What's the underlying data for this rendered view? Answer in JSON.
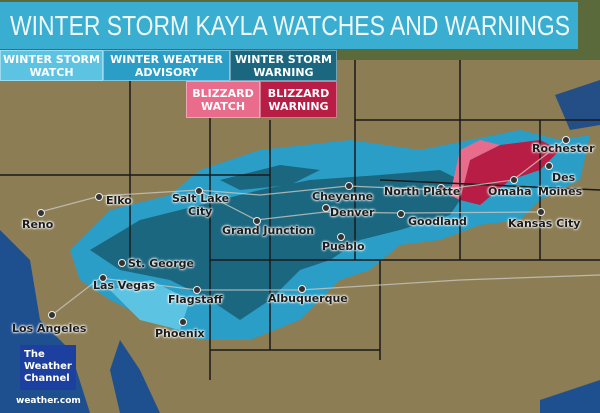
{
  "title": "WINTER STORM KAYLA WATCHES AND WARNINGS",
  "legend": [
    {
      "line1": "WINTER STORM",
      "line2": "WATCH",
      "color": "#5cc3e3"
    },
    {
      "line1": "WINTER WEATHER",
      "line2": "ADVISORY",
      "color": "#2a9ec6"
    },
    {
      "line1": "WINTER STORM",
      "line2": "WARNING",
      "color": "#1b6780"
    },
    {
      "line1": "BLIZZARD",
      "line2": "WATCH",
      "color": "#ea6c8c"
    },
    {
      "line1": "BLIZZARD",
      "line2": "WARNING",
      "color": "#b81e45"
    }
  ],
  "cities": [
    "Reno",
    "Elko",
    "Salt Lake",
    "City",
    "Cheyenne",
    "Denver",
    "Grand Junction",
    "Pueblo",
    "North Platte",
    "Goodland",
    "Omaha",
    "Des",
    "Moines",
    "Rochester",
    "Kansas City",
    "St. George",
    "Las Vegas",
    "Flagstaff",
    "Albuquerque",
    "Los Angeles",
    "Phoenix"
  ],
  "logo": {
    "line1": "The",
    "line2": "Weather",
    "line3": "Channel",
    "url": "weather.com"
  }
}
